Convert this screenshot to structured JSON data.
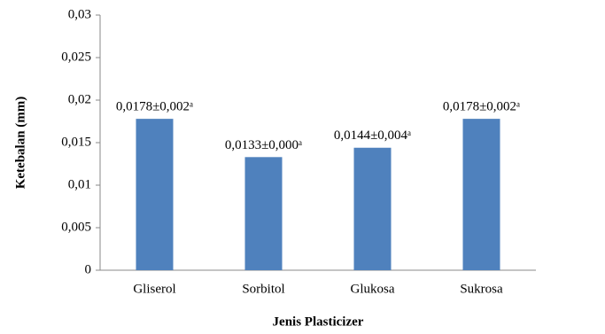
{
  "chart_data": {
    "type": "bar",
    "x_label": "Jenis Plasticizer",
    "y_label": "Ketebalan (mm)",
    "categories": [
      "Gliserol",
      "Sorbitol",
      "Glukosa",
      "Sukrosa"
    ],
    "values": [
      0.0178,
      0.0133,
      0.0144,
      0.0178
    ],
    "value_labels": [
      "0,0178±0,002ᵃ",
      "0,0133±0,000ᵃ",
      "0,0144±0,004ᵃ",
      "0,0178±0,002ᵃ"
    ],
    "color": "#4f81bd",
    "ylim": [
      0,
      0.03
    ],
    "yticks": [
      0,
      {
        "value": 0.005,
        "label": "0,005"
      },
      {
        "value": 0.01,
        "label": "0,01"
      },
      {
        "value": 0.015,
        "label": "0,015"
      },
      {
        "value": 0.02,
        "label": "0,02"
      },
      {
        "value": 0.025,
        "label": "0,025"
      },
      {
        "value": 0.03,
        "label": "0,03"
      }
    ],
    "grid": false
  }
}
